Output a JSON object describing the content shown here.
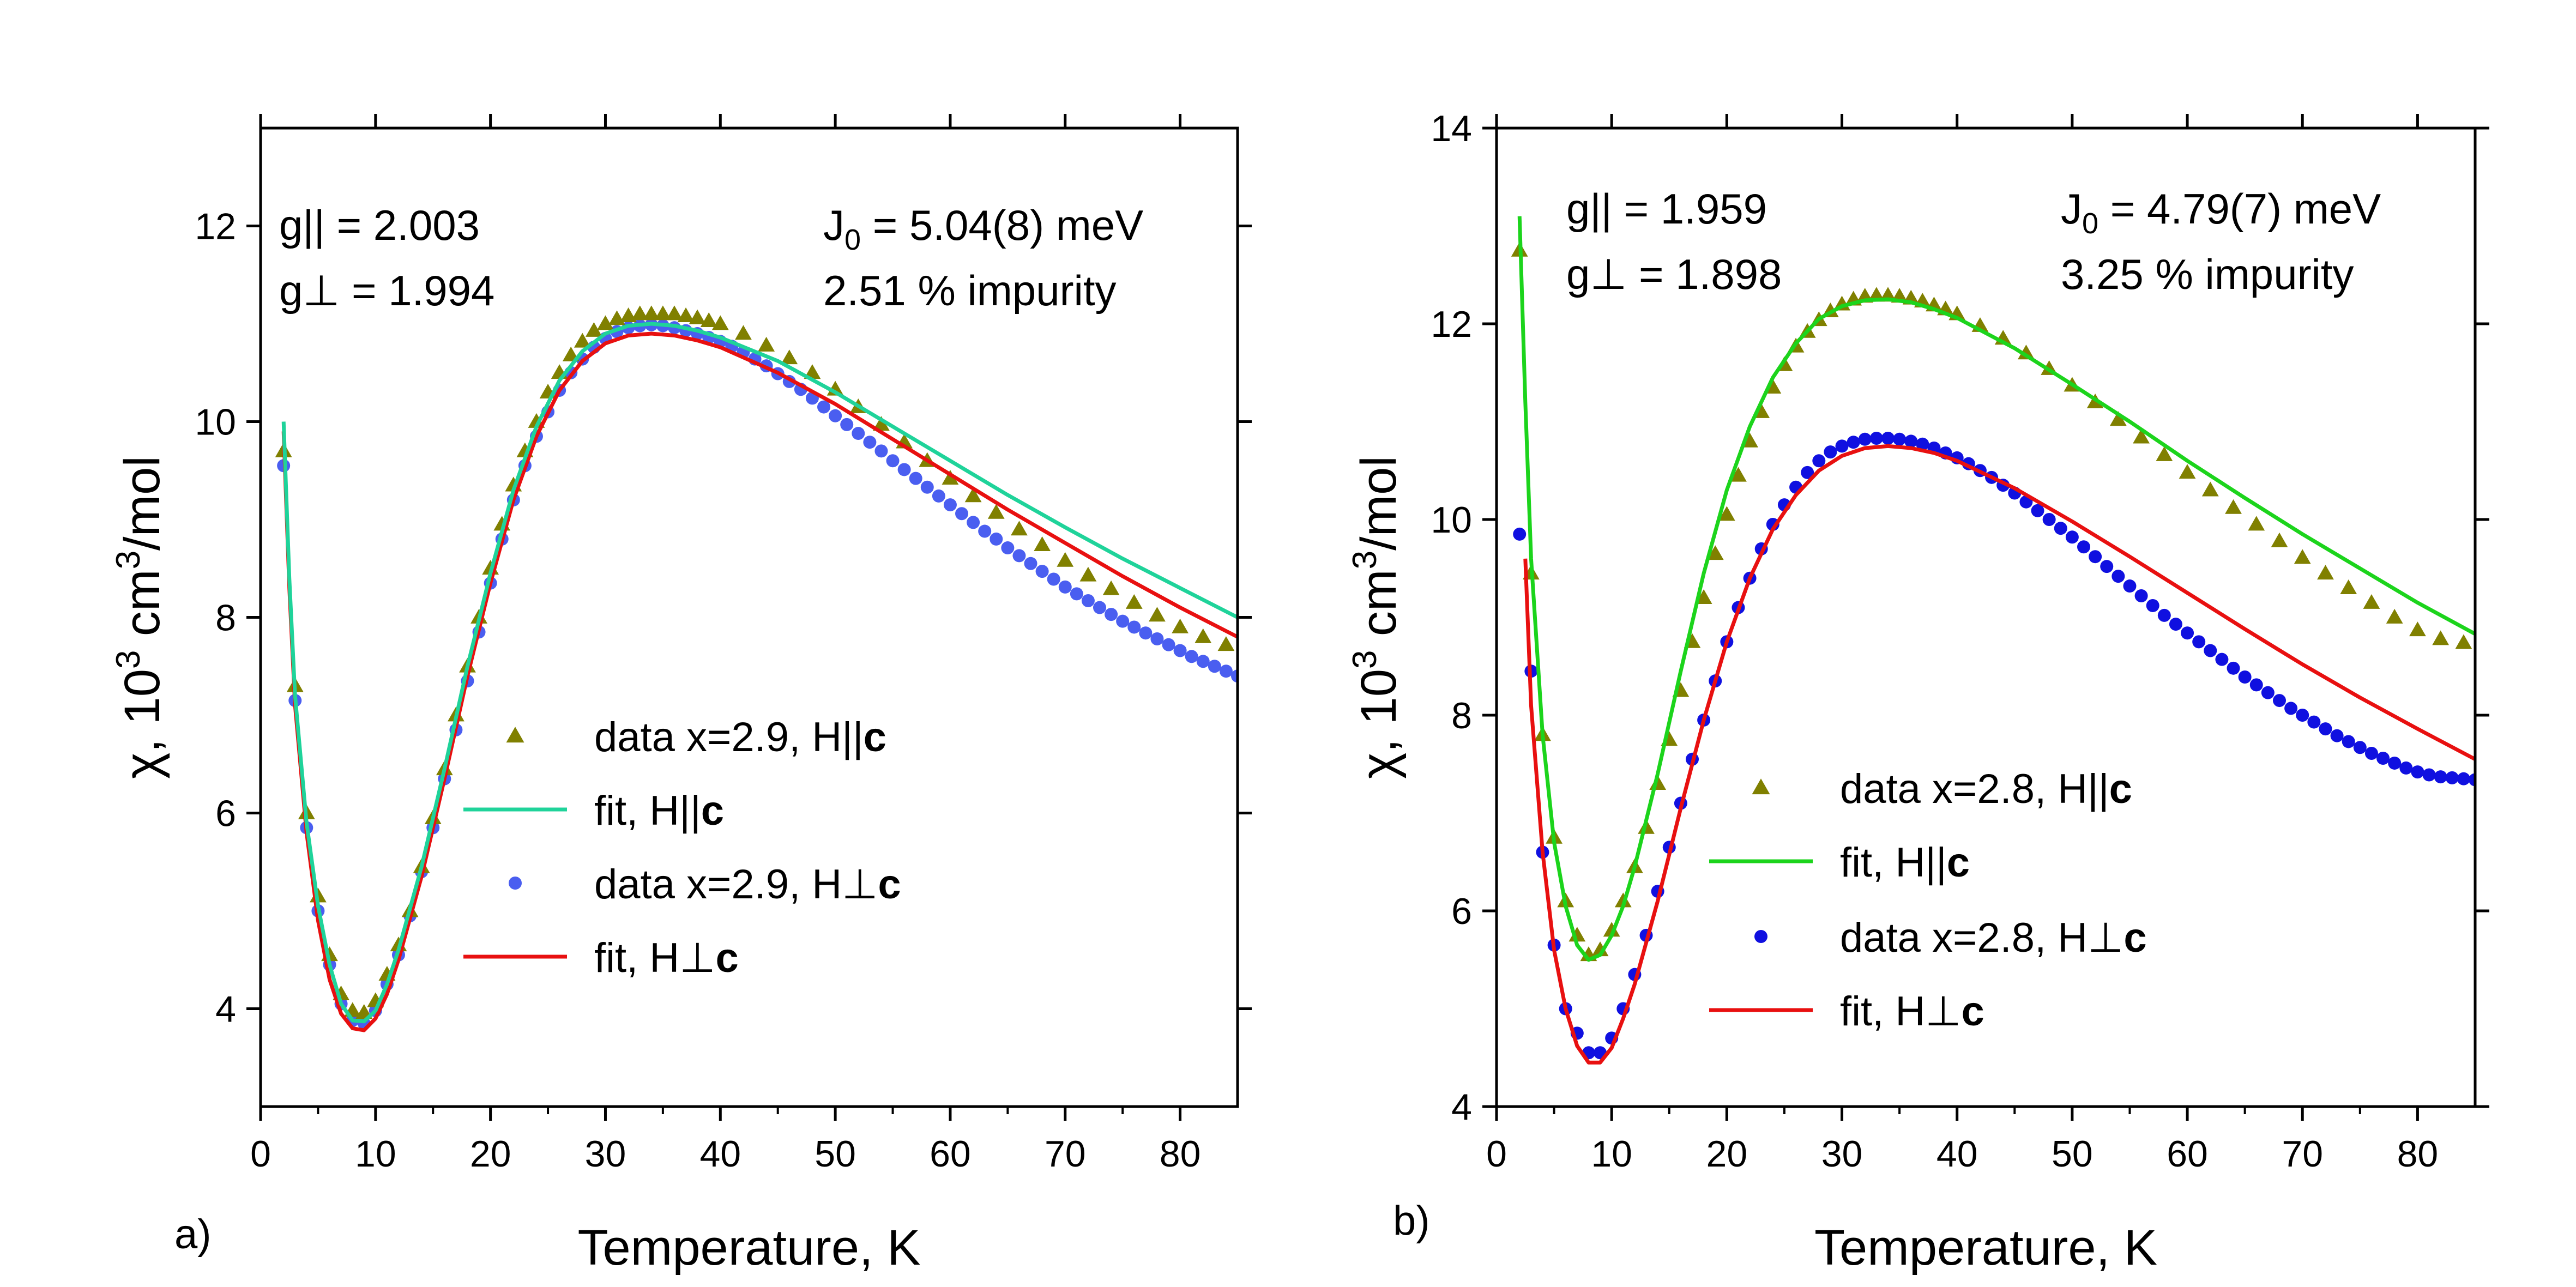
{
  "colors": {
    "tri_marker": "#808000",
    "circ_marker_a": "#4a5ef0",
    "circ_marker_b": "#1010e0",
    "fit_par_a": "#1fd39a",
    "fit_par_b": "#1cd41c",
    "fit_perp": "#e81010",
    "axis": "#000000"
  },
  "chart_data": [
    {
      "type": "scatter",
      "panel_label": "a)",
      "xlabel": "Temperature, K",
      "ylabel": {
        "chi": "χ",
        "sep": ", ",
        "base": "10",
        "exp": "3",
        "unit_pre": " cm",
        "unit_exp": "3",
        "unit_post": "/mol"
      },
      "xlim": [
        0,
        85
      ],
      "ylim": [
        3,
        13
      ],
      "xticks": [
        0,
        10,
        20,
        30,
        40,
        50,
        60,
        70,
        80
      ],
      "xtick_labels": [
        "0",
        "10",
        "20",
        "30",
        "40",
        "50",
        "60",
        "70",
        "80"
      ],
      "yticks": [
        4,
        6,
        8,
        10,
        12
      ],
      "ytick_labels": [
        "4",
        "6",
        "8",
        "10",
        "12"
      ],
      "annotations": {
        "g_par": "g||  = 2.003",
        "g_perp": "g⊥ = 1.994",
        "j0_pre": "J",
        "j0_sub": "0",
        "j0_post": " = 5.04(8) meV",
        "impurity": "2.51 % impurity"
      },
      "legend": [
        {
          "label_pre": "data x=2.9, H||",
          "label_bold": "c",
          "kind": "tri"
        },
        {
          "label_pre": "fit, H||",
          "label_bold": "c",
          "kind": "line_par"
        },
        {
          "label_pre": "data x=2.9, H⊥",
          "label_bold": "c",
          "kind": "circ"
        },
        {
          "label_pre": "fit, H⊥",
          "label_bold": "c",
          "kind": "line_perp"
        }
      ],
      "data_par": {
        "x": [
          2,
          3,
          4,
          5,
          6,
          7,
          8,
          9,
          10,
          11,
          12,
          13,
          14,
          15,
          16,
          17,
          18,
          19,
          20,
          21,
          22,
          23,
          24,
          25,
          26,
          27,
          28,
          29,
          30,
          31,
          32,
          33,
          34,
          35,
          36,
          37,
          38,
          39,
          40,
          42,
          44,
          46,
          48,
          50,
          52,
          54,
          56,
          58,
          60,
          62,
          64,
          66,
          68,
          70,
          72,
          74,
          76,
          78,
          80,
          82,
          84
        ],
        "y": [
          9.7,
          7.3,
          6.0,
          5.15,
          4.55,
          4.15,
          3.98,
          3.96,
          4.08,
          4.35,
          4.65,
          5.0,
          5.45,
          5.95,
          6.45,
          7.0,
          7.5,
          8.0,
          8.5,
          8.95,
          9.35,
          9.7,
          10.0,
          10.3,
          10.5,
          10.68,
          10.82,
          10.93,
          11.0,
          11.05,
          11.08,
          11.1,
          11.1,
          11.1,
          11.1,
          11.08,
          11.06,
          11.03,
          11.0,
          10.9,
          10.78,
          10.65,
          10.5,
          10.33,
          10.15,
          9.97,
          9.79,
          9.6,
          9.42,
          9.24,
          9.07,
          8.9,
          8.74,
          8.58,
          8.43,
          8.29,
          8.15,
          8.02,
          7.9,
          7.8,
          7.72
        ]
      },
      "data_perp": {
        "x": [
          2,
          3,
          4,
          5,
          6,
          7,
          8,
          9,
          10,
          11,
          12,
          13,
          14,
          15,
          16,
          17,
          18,
          19,
          20,
          21,
          22,
          23,
          24,
          25,
          26,
          27,
          28,
          29,
          30,
          31,
          32,
          33,
          34,
          35,
          36,
          37,
          38,
          39,
          40,
          41,
          42,
          43,
          44,
          45,
          46,
          47,
          48,
          49,
          50,
          51,
          52,
          53,
          54,
          55,
          56,
          57,
          58,
          59,
          60,
          61,
          62,
          63,
          64,
          65,
          66,
          67,
          68,
          69,
          70,
          71,
          72,
          73,
          74,
          75,
          76,
          77,
          78,
          79,
          80,
          81,
          82,
          83,
          84,
          85
        ],
        "y": [
          9.55,
          7.15,
          5.85,
          5.0,
          4.45,
          4.05,
          3.88,
          3.85,
          3.98,
          4.25,
          4.55,
          4.95,
          5.4,
          5.85,
          6.35,
          6.85,
          7.35,
          7.85,
          8.35,
          8.8,
          9.2,
          9.55,
          9.85,
          10.1,
          10.32,
          10.5,
          10.64,
          10.76,
          10.85,
          10.92,
          10.96,
          10.98,
          10.99,
          10.98,
          10.96,
          10.93,
          10.9,
          10.86,
          10.82,
          10.77,
          10.71,
          10.64,
          10.57,
          10.49,
          10.41,
          10.33,
          10.24,
          10.15,
          10.06,
          9.97,
          9.88,
          9.79,
          9.7,
          9.6,
          9.51,
          9.42,
          9.33,
          9.24,
          9.15,
          9.06,
          8.97,
          8.88,
          8.8,
          8.71,
          8.63,
          8.55,
          8.47,
          8.39,
          8.31,
          8.24,
          8.17,
          8.1,
          8.03,
          7.96,
          7.9,
          7.84,
          7.78,
          7.72,
          7.66,
          7.6,
          7.55,
          7.5,
          7.45,
          7.4
        ]
      },
      "fit_par": {
        "x": [
          2,
          2.5,
          3,
          4,
          5,
          6,
          7,
          8,
          9,
          10,
          11,
          12,
          14,
          16,
          18,
          20,
          22,
          24,
          26,
          28,
          30,
          32,
          34,
          36,
          38,
          40,
          45,
          50,
          55,
          60,
          65,
          70,
          75,
          80,
          85
        ],
        "y": [
          10.0,
          8.4,
          7.2,
          5.9,
          5.05,
          4.45,
          4.05,
          3.88,
          3.87,
          3.98,
          4.25,
          4.6,
          5.45,
          6.45,
          7.5,
          8.45,
          9.3,
          9.95,
          10.42,
          10.72,
          10.9,
          10.98,
          11.0,
          10.98,
          10.93,
          10.86,
          10.62,
          10.3,
          9.95,
          9.6,
          9.25,
          8.92,
          8.6,
          8.3,
          8.0
        ]
      },
      "fit_perp": {
        "x": [
          2,
          2.5,
          3,
          4,
          5,
          6,
          7,
          8,
          9,
          10,
          11,
          12,
          14,
          16,
          18,
          20,
          22,
          24,
          26,
          28,
          30,
          32,
          34,
          36,
          38,
          40,
          45,
          50,
          55,
          60,
          65,
          70,
          75,
          80,
          85
        ],
        "y": [
          9.9,
          8.3,
          7.1,
          5.8,
          4.9,
          4.3,
          3.95,
          3.8,
          3.78,
          3.9,
          4.15,
          4.5,
          5.35,
          6.35,
          7.4,
          8.35,
          9.2,
          9.85,
          10.32,
          10.62,
          10.8,
          10.88,
          10.9,
          10.88,
          10.83,
          10.76,
          10.5,
          10.18,
          9.82,
          9.46,
          9.1,
          8.76,
          8.42,
          8.1,
          7.8
        ]
      }
    },
    {
      "type": "scatter",
      "panel_label": "b)",
      "xlabel": "Temperature, K",
      "ylabel": {
        "chi": "χ",
        "sep": ", ",
        "base": "10",
        "exp": "3",
        "unit_pre": " cm",
        "unit_exp": "3",
        "unit_post": "/mol"
      },
      "xlim": [
        0,
        85
      ],
      "ylim": [
        4,
        14
      ],
      "xticks": [
        0,
        10,
        20,
        30,
        40,
        50,
        60,
        70,
        80
      ],
      "xtick_labels": [
        "0",
        "10",
        "20",
        "30",
        "40",
        "50",
        "60",
        "70",
        "80"
      ],
      "yticks": [
        4,
        6,
        8,
        10,
        12,
        14
      ],
      "ytick_labels": [
        "4",
        "6",
        "8",
        "10",
        "12",
        "14"
      ],
      "annotations": {
        "g_par": "g||  = 1.959",
        "g_perp": "g⊥ = 1.898",
        "j0_pre": "J",
        "j0_sub": "0",
        "j0_post": " = 4.79(7) meV",
        "impurity": "3.25 % impurity"
      },
      "legend": [
        {
          "label_pre": "data x=2.8, H||",
          "label_bold": "c",
          "kind": "tri"
        },
        {
          "label_pre": "fit, H||",
          "label_bold": "c",
          "kind": "line_par"
        },
        {
          "label_pre": "data x=2.8, H⊥",
          "label_bold": "c",
          "kind": "circ"
        },
        {
          "label_pre": "fit, H⊥",
          "label_bold": "c",
          "kind": "line_perp"
        }
      ],
      "data_par": {
        "x": [
          2,
          3,
          4,
          5,
          6,
          7,
          8,
          9,
          10,
          11,
          12,
          13,
          14,
          15,
          16,
          17,
          18,
          19,
          20,
          21,
          22,
          23,
          24,
          25,
          26,
          27,
          28,
          29,
          30,
          31,
          32,
          33,
          34,
          35,
          36,
          37,
          38,
          39,
          40,
          42,
          44,
          46,
          48,
          50,
          52,
          54,
          56,
          58,
          60,
          62,
          64,
          66,
          68,
          70,
          72,
          74,
          76,
          78,
          80,
          82,
          84
        ],
        "y": [
          12.75,
          9.45,
          7.8,
          6.75,
          6.1,
          5.75,
          5.55,
          5.6,
          5.8,
          6.1,
          6.45,
          6.85,
          7.3,
          7.75,
          8.25,
          8.75,
          9.2,
          9.65,
          10.05,
          10.45,
          10.8,
          11.1,
          11.35,
          11.58,
          11.77,
          11.92,
          12.04,
          12.13,
          12.2,
          12.25,
          12.28,
          12.29,
          12.29,
          12.28,
          12.26,
          12.23,
          12.19,
          12.15,
          12.1,
          11.98,
          11.85,
          11.7,
          11.54,
          11.37,
          11.2,
          11.02,
          10.84,
          10.66,
          10.48,
          10.3,
          10.12,
          9.95,
          9.78,
          9.61,
          9.45,
          9.3,
          9.15,
          9.0,
          8.87,
          8.78,
          8.74
        ]
      },
      "data_perp": {
        "x": [
          2,
          3,
          4,
          5,
          6,
          7,
          8,
          9,
          10,
          11,
          12,
          13,
          14,
          15,
          16,
          17,
          18,
          19,
          20,
          21,
          22,
          23,
          24,
          25,
          26,
          27,
          28,
          29,
          30,
          31,
          32,
          33,
          34,
          35,
          36,
          37,
          38,
          39,
          40,
          41,
          42,
          43,
          44,
          45,
          46,
          47,
          48,
          49,
          50,
          51,
          52,
          53,
          54,
          55,
          56,
          57,
          58,
          59,
          60,
          61,
          62,
          63,
          64,
          65,
          66,
          67,
          68,
          69,
          70,
          71,
          72,
          73,
          74,
          75,
          76,
          77,
          78,
          79,
          80,
          81,
          82,
          83,
          84,
          85
        ],
        "y": [
          9.85,
          8.45,
          6.6,
          5.65,
          5.0,
          4.75,
          4.55,
          4.55,
          4.7,
          5.0,
          5.35,
          5.75,
          6.2,
          6.65,
          7.1,
          7.55,
          7.95,
          8.35,
          8.75,
          9.1,
          9.4,
          9.7,
          9.95,
          10.15,
          10.33,
          10.48,
          10.6,
          10.69,
          10.75,
          10.79,
          10.82,
          10.83,
          10.83,
          10.82,
          10.8,
          10.77,
          10.73,
          10.68,
          10.63,
          10.57,
          10.5,
          10.43,
          10.35,
          10.27,
          10.18,
          10.09,
          10.0,
          9.91,
          9.82,
          9.72,
          9.62,
          9.52,
          9.42,
          9.32,
          9.22,
          9.12,
          9.02,
          8.93,
          8.84,
          8.75,
          8.66,
          8.57,
          8.48,
          8.39,
          8.31,
          8.23,
          8.15,
          8.07,
          8.0,
          7.93,
          7.86,
          7.79,
          7.73,
          7.67,
          7.61,
          7.56,
          7.51,
          7.46,
          7.42,
          7.39,
          7.37,
          7.36,
          7.35,
          7.34
        ]
      },
      "fit_par": {
        "x": [
          2,
          2.5,
          3,
          4,
          5,
          6,
          7,
          8,
          9,
          10,
          11,
          12,
          14,
          16,
          18,
          20,
          22,
          24,
          26,
          28,
          30,
          32,
          34,
          36,
          38,
          40,
          45,
          50,
          55,
          60,
          65,
          70,
          75,
          80,
          85
        ],
        "y": [
          13.1,
          11.2,
          9.6,
          7.8,
          6.7,
          6.05,
          5.65,
          5.5,
          5.55,
          5.75,
          6.05,
          6.45,
          7.4,
          8.45,
          9.45,
          10.3,
          10.95,
          11.45,
          11.8,
          12.05,
          12.18,
          12.24,
          12.25,
          12.22,
          12.15,
          12.06,
          11.75,
          11.38,
          11.0,
          10.6,
          10.22,
          9.85,
          9.5,
          9.15,
          8.83
        ]
      },
      "fit_perp": {
        "x": [
          2.5,
          3,
          4,
          5,
          6,
          7,
          8,
          9,
          10,
          11,
          12,
          14,
          16,
          18,
          20,
          22,
          24,
          26,
          28,
          30,
          32,
          34,
          36,
          38,
          40,
          45,
          50,
          55,
          60,
          65,
          70,
          75,
          80,
          85
        ],
        "y": [
          9.6,
          8.1,
          6.6,
          5.6,
          5.0,
          4.62,
          4.45,
          4.45,
          4.6,
          4.9,
          5.25,
          6.1,
          7.05,
          7.95,
          8.75,
          9.4,
          9.9,
          10.25,
          10.5,
          10.65,
          10.73,
          10.75,
          10.73,
          10.68,
          10.6,
          10.32,
          9.98,
          9.62,
          9.25,
          8.88,
          8.52,
          8.18,
          7.86,
          7.55
        ]
      }
    }
  ]
}
